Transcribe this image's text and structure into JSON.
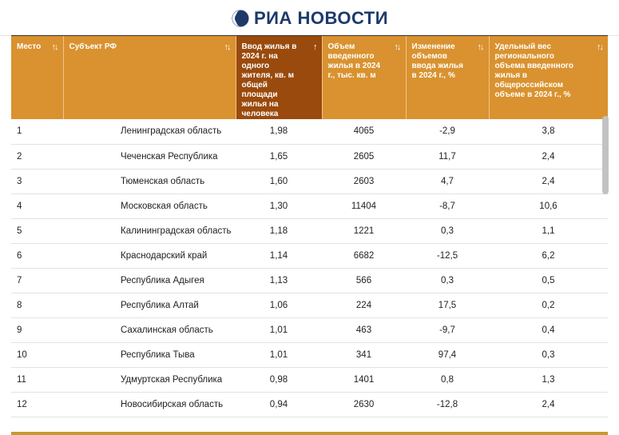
{
  "brand": {
    "logo_text": "РИА НОВОСТИ",
    "accent": "#d9922f",
    "active_header": "#9a4a0c",
    "logo_color": "#1d3a6b"
  },
  "table": {
    "headers": [
      {
        "label": "Место",
        "sort_icon": "sort-both-icon",
        "sort_glyph": "↑↓"
      },
      {
        "label": "Субъект РФ",
        "sort_icon": "sort-both-icon",
        "sort_glyph": "↑↓"
      },
      {
        "label": "Ввод жилья в 2024 г. на одного жителя, кв. м общей площади жилья на человека",
        "sort_icon": "sort-up-icon",
        "sort_glyph": "↑"
      },
      {
        "label": "Объем введенного жилья в 2024 г., тыс. кв. м",
        "sort_icon": "sort-both-icon",
        "sort_glyph": "↑↓"
      },
      {
        "label": "Изменение объемов ввода жилья в 2024 г., %",
        "sort_icon": "sort-both-icon",
        "sort_glyph": "↑↓"
      },
      {
        "label": "Удельный вес регионального объема введенного жилья в общероссийском объеме в 2024 г., %",
        "sort_icon": "sort-both-icon",
        "sort_glyph": "↑↓"
      }
    ],
    "rows": [
      [
        "1",
        "Ленинградская область",
        "1,98",
        "4065",
        "-2,9",
        "3,8"
      ],
      [
        "2",
        "Чеченская Республика",
        "1,65",
        "2605",
        "11,7",
        "2,4"
      ],
      [
        "3",
        "Тюменская область",
        "1,60",
        "2603",
        "4,7",
        "2,4"
      ],
      [
        "4",
        "Московская область",
        "1,30",
        "11404",
        "-8,7",
        "10,6"
      ],
      [
        "5",
        "Калининградская область",
        "1,18",
        "1221",
        "0,3",
        "1,1"
      ],
      [
        "6",
        "Краснодарский край",
        "1,14",
        "6682",
        "-12,5",
        "6,2"
      ],
      [
        "7",
        "Республика Адыгея",
        "1,13",
        "566",
        "0,3",
        "0,5"
      ],
      [
        "8",
        "Республика Алтай",
        "1,06",
        "224",
        "17,5",
        "0,2"
      ],
      [
        "9",
        "Сахалинская область",
        "1,01",
        "463",
        "-9,7",
        "0,4"
      ],
      [
        "10",
        "Республика Тыва",
        "1,01",
        "341",
        "97,4",
        "0,3"
      ],
      [
        "11",
        "Удмуртская Республика",
        "0,98",
        "1401",
        "0,8",
        "1,3"
      ],
      [
        "12",
        "Новосибирская область",
        "0,94",
        "2630",
        "-12,8",
        "2,4"
      ]
    ]
  }
}
